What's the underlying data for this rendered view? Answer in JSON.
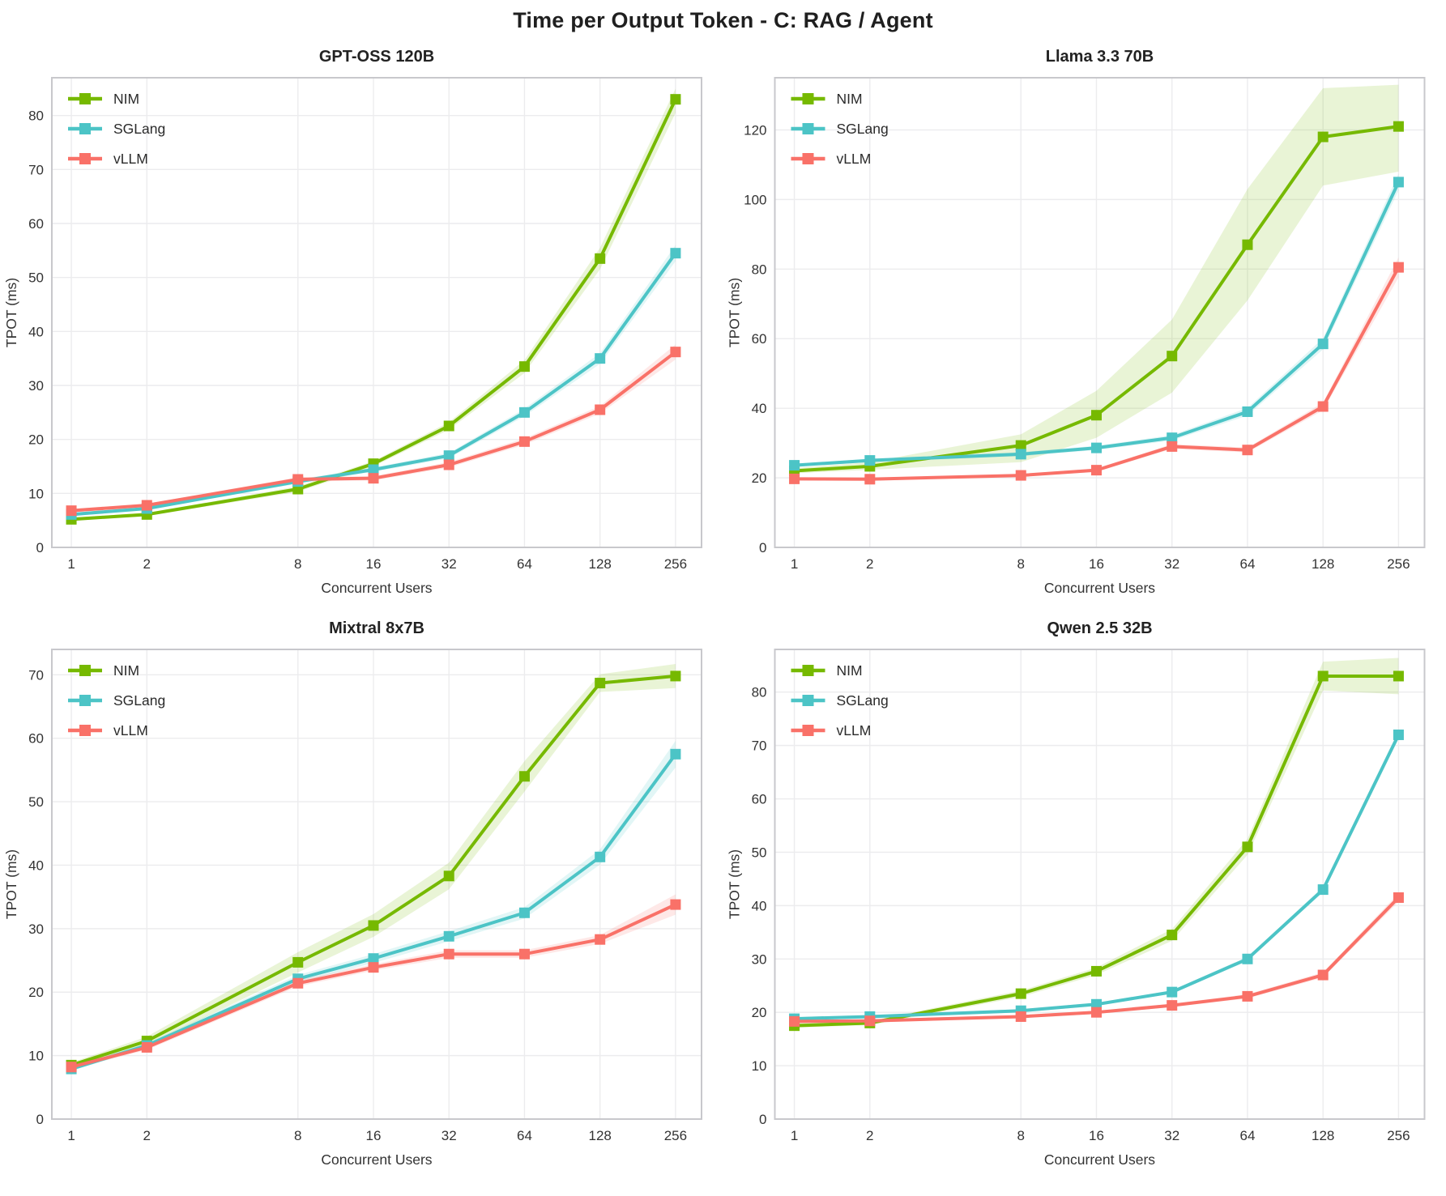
{
  "figure_title": "Time per Output Token - C: RAG / Agent",
  "axes": {
    "xlabel": "Concurrent Users",
    "ylabel": "TPOT (ms)"
  },
  "legend": {
    "position": "upper-left",
    "entries": [
      "NIM",
      "SGLang",
      "vLLM"
    ]
  },
  "colors": {
    "nim": "#76b900",
    "sglang": "#4cc4c6",
    "vllm": "#f97168",
    "grid": "#ececee",
    "spine": "#c8c8cc",
    "tick_text": "#333333",
    "title_text": "#222222"
  },
  "x_categories": [
    1,
    2,
    8,
    16,
    32,
    64,
    128,
    256
  ],
  "chart_data": [
    {
      "type": "line",
      "title": "GPT-OSS 120B",
      "xlabel": "Concurrent Users",
      "ylabel": "TPOT (ms)",
      "x_scale": "log2",
      "grid": true,
      "x": [
        1,
        2,
        8,
        16,
        32,
        64,
        128,
        256
      ],
      "ylim": [
        0,
        87
      ],
      "yticks": [
        0,
        10,
        20,
        30,
        40,
        50,
        60,
        70,
        80
      ],
      "series": [
        {
          "name": "NIM",
          "color": "#76b900",
          "values": [
            5.2,
            6.1,
            10.8,
            15.5,
            22.5,
            33.5,
            53.5,
            83.0
          ],
          "band_lower": [
            5.0,
            5.8,
            10.3,
            15.0,
            21.8,
            32.3,
            51.5,
            80.5
          ],
          "band_upper": [
            5.5,
            6.4,
            11.3,
            16.0,
            23.2,
            34.7,
            55.5,
            85.0
          ]
        },
        {
          "name": "SGLang",
          "color": "#4cc4c6",
          "values": [
            6.1,
            7.2,
            12.2,
            14.4,
            17.0,
            25.0,
            35.0,
            54.5
          ],
          "band_lower": [
            5.8,
            7.0,
            11.8,
            14.0,
            16.5,
            24.3,
            34.0,
            53.0
          ],
          "band_upper": [
            6.4,
            7.5,
            12.6,
            14.8,
            17.5,
            25.7,
            36.0,
            56.0
          ]
        },
        {
          "name": "vLLM",
          "color": "#f97168",
          "values": [
            6.8,
            7.8,
            12.6,
            12.8,
            15.3,
            19.6,
            25.5,
            36.2
          ],
          "band_lower": [
            6.5,
            7.5,
            12.2,
            12.4,
            14.8,
            19.0,
            24.8,
            34.8
          ],
          "band_upper": [
            7.1,
            8.1,
            13.0,
            13.2,
            15.8,
            20.2,
            26.2,
            37.6
          ]
        }
      ]
    },
    {
      "type": "line",
      "title": "Llama 3.3 70B",
      "xlabel": "Concurrent Users",
      "ylabel": "TPOT (ms)",
      "x_scale": "log2",
      "grid": true,
      "x": [
        1,
        2,
        8,
        16,
        32,
        64,
        128,
        256
      ],
      "ylim": [
        0,
        135
      ],
      "yticks": [
        0,
        20,
        40,
        60,
        80,
        100,
        120
      ],
      "series": [
        {
          "name": "NIM",
          "color": "#76b900",
          "values": [
            22.0,
            23.3,
            29.3,
            38.0,
            55.0,
            87.0,
            118.0,
            121.0
          ],
          "band_lower": [
            21.3,
            22.3,
            24.5,
            31.5,
            44.5,
            71.0,
            104.0,
            108.0
          ],
          "band_upper": [
            22.8,
            24.5,
            32.5,
            45.0,
            65.5,
            103.0,
            132.0,
            133.0
          ]
        },
        {
          "name": "SGLang",
          "color": "#4cc4c6",
          "values": [
            23.6,
            25.0,
            26.8,
            28.6,
            31.5,
            39.0,
            58.5,
            105.0
          ],
          "band_lower": [
            23.2,
            24.5,
            26.2,
            28.0,
            30.7,
            37.9,
            56.9,
            102.6
          ],
          "band_upper": [
            24.0,
            25.5,
            27.4,
            29.2,
            32.3,
            40.1,
            60.1,
            107.4
          ]
        },
        {
          "name": "vLLM",
          "color": "#f97168",
          "values": [
            19.7,
            19.6,
            20.7,
            22.2,
            29.0,
            28.0,
            40.5,
            80.5
          ],
          "band_lower": [
            19.3,
            19.2,
            20.3,
            21.7,
            28.3,
            27.3,
            39.4,
            77.6
          ],
          "band_upper": [
            20.1,
            20.0,
            21.1,
            22.7,
            29.7,
            28.7,
            41.6,
            83.4
          ]
        }
      ]
    },
    {
      "type": "line",
      "title": "Mixtral 8x7B",
      "xlabel": "Concurrent Users",
      "ylabel": "TPOT (ms)",
      "x_scale": "log2",
      "grid": true,
      "x": [
        1,
        2,
        8,
        16,
        32,
        64,
        128,
        256
      ],
      "ylim": [
        0,
        74
      ],
      "yticks": [
        0,
        10,
        20,
        30,
        40,
        50,
        60,
        70
      ],
      "series": [
        {
          "name": "NIM",
          "color": "#76b900",
          "values": [
            8.5,
            12.3,
            24.7,
            30.5,
            38.3,
            54.0,
            68.7,
            69.8
          ],
          "band_lower": [
            8.1,
            11.6,
            23.1,
            28.7,
            36.2,
            51.6,
            67.3,
            67.9
          ],
          "band_upper": [
            8.9,
            13.0,
            26.3,
            32.3,
            40.4,
            56.4,
            70.1,
            71.7
          ]
        },
        {
          "name": "SGLang",
          "color": "#4cc4c6",
          "values": [
            7.9,
            11.6,
            22.1,
            25.3,
            28.8,
            32.5,
            41.3,
            57.5
          ],
          "band_lower": [
            7.6,
            11.2,
            21.5,
            24.6,
            28.0,
            31.6,
            40.1,
            55.4
          ],
          "band_upper": [
            8.2,
            12.0,
            22.7,
            26.0,
            29.6,
            33.4,
            42.5,
            59.6
          ]
        },
        {
          "name": "vLLM",
          "color": "#f97168",
          "values": [
            8.2,
            11.3,
            21.4,
            23.9,
            26.0,
            26.0,
            28.3,
            33.8
          ],
          "band_lower": [
            7.9,
            10.9,
            20.9,
            23.4,
            25.4,
            25.4,
            27.6,
            32.2
          ],
          "band_upper": [
            8.5,
            11.7,
            21.9,
            24.4,
            26.6,
            26.6,
            29.0,
            35.4
          ]
        }
      ]
    },
    {
      "type": "line",
      "title": "Qwen 2.5 32B",
      "xlabel": "Concurrent Users",
      "ylabel": "TPOT (ms)",
      "x_scale": "log2",
      "grid": true,
      "x": [
        1,
        2,
        8,
        16,
        32,
        64,
        128,
        256
      ],
      "ylim": [
        0,
        88
      ],
      "yticks": [
        0,
        10,
        20,
        30,
        40,
        50,
        60,
        70,
        80
      ],
      "series": [
        {
          "name": "NIM",
          "color": "#76b900",
          "values": [
            17.5,
            18.0,
            23.5,
            27.7,
            34.5,
            51.0,
            83.0,
            83.0
          ],
          "band_lower": [
            17.1,
            17.6,
            22.9,
            27.0,
            33.4,
            49.5,
            80.3,
            79.6
          ],
          "band_upper": [
            17.9,
            18.4,
            24.1,
            28.4,
            35.6,
            52.5,
            85.7,
            86.4
          ]
        },
        {
          "name": "SGLang",
          "color": "#4cc4c6",
          "values": [
            18.8,
            19.2,
            20.3,
            21.5,
            23.8,
            30.0,
            43.0,
            72.0
          ],
          "band_lower": [
            18.5,
            18.9,
            20.0,
            21.2,
            23.5,
            29.6,
            42.5,
            71.2
          ],
          "band_upper": [
            19.1,
            19.5,
            20.6,
            21.8,
            24.1,
            30.4,
            43.5,
            72.8
          ]
        },
        {
          "name": "vLLM",
          "color": "#f97168",
          "values": [
            18.3,
            18.4,
            19.2,
            20.0,
            21.3,
            23.0,
            27.0,
            41.5
          ],
          "band_lower": [
            18.0,
            18.1,
            18.9,
            19.7,
            21.0,
            22.6,
            26.5,
            40.7
          ],
          "band_upper": [
            18.6,
            18.7,
            19.5,
            20.3,
            21.6,
            23.4,
            27.5,
            42.3
          ]
        }
      ]
    }
  ]
}
